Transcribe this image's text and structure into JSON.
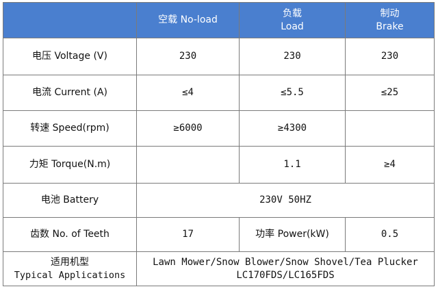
{
  "header": {
    "col1": "空载 No-load",
    "col2_zh": "负载",
    "col2_en": "Load",
    "col3_zh": "制动",
    "col3_en": "Brake"
  },
  "rows": {
    "voltage": {
      "label": "电压 Voltage (V)",
      "noload": "230",
      "load": "230",
      "brake": "230"
    },
    "current": {
      "label": "电流 Current (A)",
      "noload": "≤4",
      "load": "≤5.5",
      "brake": "≤25"
    },
    "speed": {
      "label": "转速 Speed(rpm)",
      "noload": "≥6000",
      "load": "≥4300",
      "brake": ""
    },
    "torque": {
      "label": "力矩 Torque(N.m)",
      "noload": "",
      "load": "1.1",
      "brake": "≥4"
    },
    "battery": {
      "label": "电池 Battery",
      "value": "230V 50HZ"
    },
    "teeth": {
      "label": "齿数 No. of Teeth",
      "value": "17",
      "power_label": "功率 Power(kW)",
      "power_value": "0.5"
    },
    "applications": {
      "label_zh": "适用机型",
      "label_en": "Typical Applications",
      "line1": "Lawn Mower/Snow Blower/Snow Shovel/Tea Plucker",
      "line2": "LC170FDS/LC165FDS"
    }
  },
  "colors": {
    "header_bg": "#4a7fcf",
    "header_text": "#ffffff",
    "border": "#7a7a7a"
  }
}
